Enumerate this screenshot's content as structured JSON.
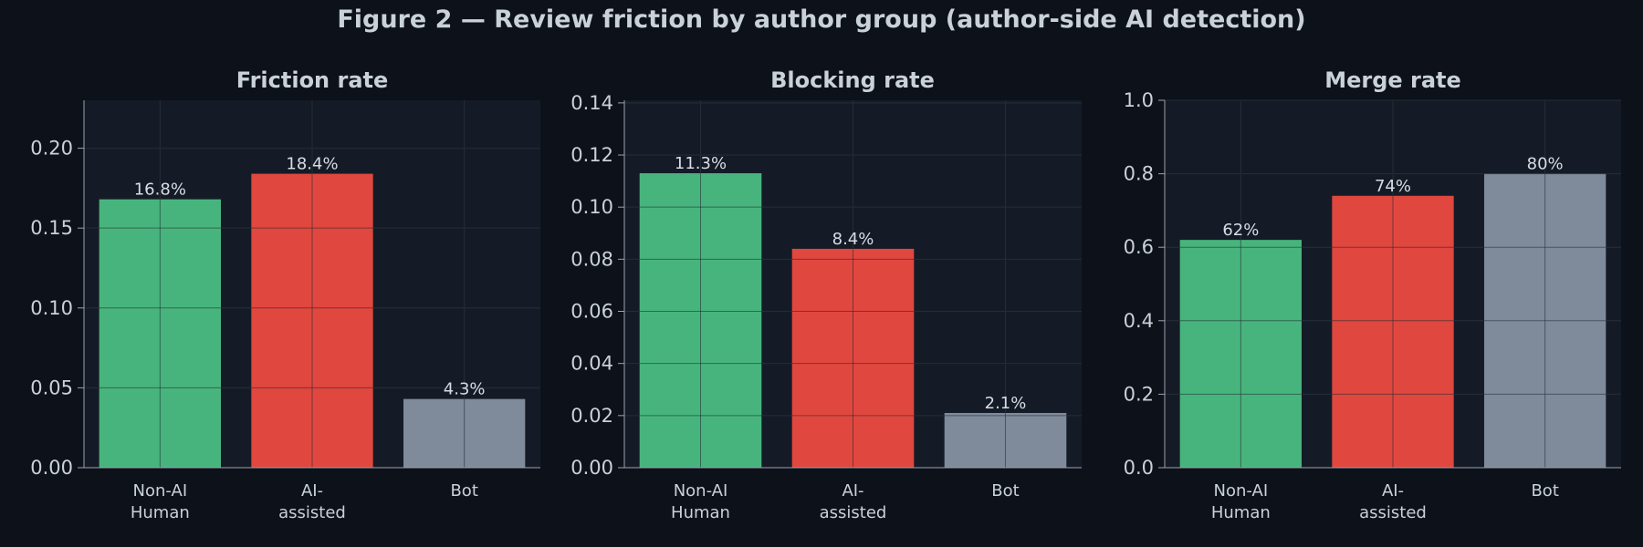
{
  "figure": {
    "title": "Figure 2 — Review friction by author group (author-side AI detection)"
  },
  "colors": {
    "background": "#0d1119",
    "panel": "#151b26",
    "grid": "#2a323f",
    "text": "#c9d1d9",
    "non_ai_human": "#48b47d",
    "ai_assisted": "#e0473f",
    "bot": "#7f8a9a"
  },
  "chart_data": [
    {
      "type": "bar",
      "title": "Friction rate",
      "categories": [
        "Non-AI Human",
        "AI-assisted",
        "Bot"
      ],
      "category_lines": [
        [
          "Non-AI",
          "Human"
        ],
        [
          "AI-",
          "assisted"
        ],
        [
          "Bot"
        ]
      ],
      "values": [
        0.168,
        0.184,
        0.043
      ],
      "data_labels": [
        "16.8%",
        "18.4%",
        "4.3%"
      ],
      "ylim": [
        0,
        0.23
      ],
      "yticks": [
        0.0,
        0.05,
        0.1,
        0.15,
        0.2
      ],
      "ytick_labels": [
        "0.00",
        "0.05",
        "0.10",
        "0.15",
        "0.20"
      ],
      "grid": true
    },
    {
      "type": "bar",
      "title": "Blocking rate",
      "categories": [
        "Non-AI Human",
        "AI-assisted",
        "Bot"
      ],
      "category_lines": [
        [
          "Non-AI",
          "Human"
        ],
        [
          "AI-",
          "assisted"
        ],
        [
          "Bot"
        ]
      ],
      "values": [
        0.113,
        0.084,
        0.021
      ],
      "data_labels": [
        "11.3%",
        "8.4%",
        "2.1%"
      ],
      "ylim": [
        0,
        0.141
      ],
      "yticks": [
        0.0,
        0.02,
        0.04,
        0.06,
        0.08,
        0.1,
        0.12,
        0.14
      ],
      "ytick_labels": [
        "0.00",
        "0.02",
        "0.04",
        "0.06",
        "0.08",
        "0.10",
        "0.12",
        "0.14"
      ],
      "grid": true
    },
    {
      "type": "bar",
      "title": "Merge rate",
      "categories": [
        "Non-AI Human",
        "AI-assisted",
        "Bot"
      ],
      "category_lines": [
        [
          "Non-AI",
          "Human"
        ],
        [
          "AI-",
          "assisted"
        ],
        [
          "Bot"
        ]
      ],
      "values": [
        0.62,
        0.74,
        0.8
      ],
      "data_labels": [
        "62%",
        "74%",
        "80%"
      ],
      "ylim": [
        0,
        1.0
      ],
      "yticks": [
        0.0,
        0.2,
        0.4,
        0.6,
        0.8,
        1.0
      ],
      "ytick_labels": [
        "0.0",
        "0.2",
        "0.4",
        "0.6",
        "0.8",
        "1.0"
      ],
      "grid": true
    }
  ]
}
